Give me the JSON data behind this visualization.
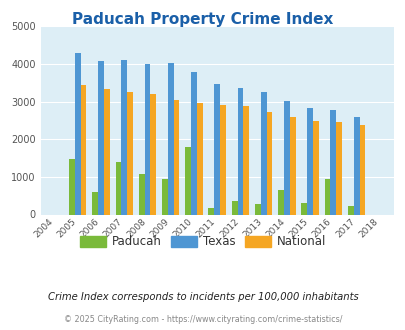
{
  "title": "Paducah Property Crime Index",
  "years": [
    2004,
    2005,
    2006,
    2007,
    2008,
    2009,
    2010,
    2011,
    2012,
    2013,
    2014,
    2015,
    2016,
    2017,
    2018
  ],
  "paducah": [
    0,
    1480,
    610,
    1400,
    1070,
    940,
    1790,
    160,
    360,
    290,
    640,
    300,
    950,
    220,
    0
  ],
  "texas": [
    0,
    4300,
    4080,
    4100,
    4000,
    4030,
    3800,
    3480,
    3370,
    3250,
    3030,
    2840,
    2770,
    2600,
    0
  ],
  "national": [
    0,
    3450,
    3340,
    3250,
    3210,
    3040,
    2960,
    2920,
    2880,
    2730,
    2600,
    2490,
    2460,
    2370,
    0
  ],
  "bar_width": 0.25,
  "colors": {
    "paducah": "#7aba3a",
    "texas": "#4e96d3",
    "national": "#f5a623"
  },
  "ylim": [
    0,
    5000
  ],
  "yticks": [
    0,
    1000,
    2000,
    3000,
    4000,
    5000
  ],
  "plot_area_color": "#ddeef6",
  "title_color": "#1a5fa8",
  "title_fontsize": 11,
  "subtitle": "Crime Index corresponds to incidents per 100,000 inhabitants",
  "subtitle_color": "#222222",
  "footer": "© 2025 CityRating.com - https://www.cityrating.com/crime-statistics/",
  "footer_color": "#888888",
  "legend_labels": [
    "Paducah",
    "Texas",
    "National"
  ],
  "legend_text_color": "#333333"
}
